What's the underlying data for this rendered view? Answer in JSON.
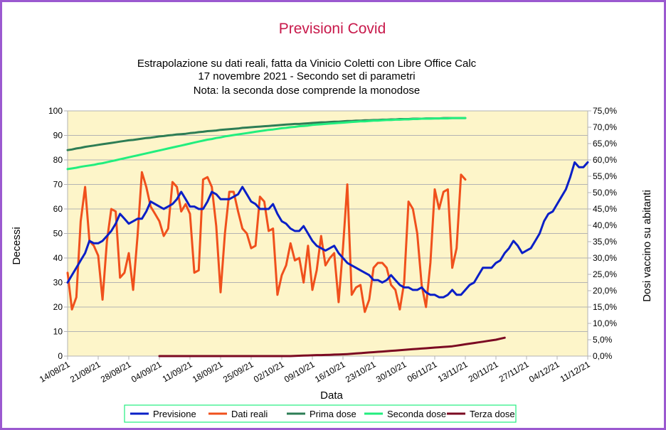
{
  "chart_data": {
    "type": "line",
    "title": "Previsioni Covid",
    "subtitle": [
      "Estrapolazione su dati reali, fatta da Vinicio Coletti con Libre Office Calc",
      "17 novembre 2021 - Secondo set di parametri",
      "Nota: la seconda dose comprende la monodose"
    ],
    "xlabel": "Data",
    "ylabel": "Decessi",
    "y2label": "Dosi vaccino su abitanti",
    "start_date": "14/08/21",
    "x_tick_labels": [
      "14/08/21",
      "21/08/21",
      "28/08/21",
      "04/09/21",
      "11/09/21",
      "18/09/21",
      "25/09/21",
      "02/10/21",
      "09/10/21",
      "16/10/21",
      "23/10/21",
      "30/10/21",
      "06/11/21",
      "13/11/21",
      "20/11/21",
      "27/11/21",
      "04/12/21",
      "11/12/21"
    ],
    "ylim": [
      0,
      100
    ],
    "y_ticks": [
      "0",
      "10",
      "20",
      "30",
      "40",
      "50",
      "60",
      "70",
      "80",
      "90",
      "100"
    ],
    "y2lim": [
      0,
      75
    ],
    "y2_ticks": [
      "0,0%",
      "5,0%",
      "10,0%",
      "15,0%",
      "20,0%",
      "25,0%",
      "30,0%",
      "35,0%",
      "40,0%",
      "45,0%",
      "50,0%",
      "55,0%",
      "60,0%",
      "65,0%",
      "70,0%",
      "75,0%"
    ],
    "grid": true,
    "legend_position": "bottom",
    "colors": {
      "plot_background": "#fdf5c9",
      "grid": "#b3b3b3",
      "frame": "#9b59d0"
    },
    "series": [
      {
        "name": "Previsione",
        "axis": "left",
        "color": "#0a1fc7",
        "start_day": 0,
        "values": [
          30,
          33,
          36,
          39,
          42,
          47,
          46,
          46,
          47,
          49,
          51,
          54,
          58,
          56,
          54,
          55,
          56,
          56,
          59,
          63,
          62,
          61,
          60,
          61,
          62,
          64,
          67,
          64,
          61,
          61,
          60,
          60,
          63,
          67,
          66,
          64,
          64,
          64,
          65,
          66,
          69,
          66,
          63,
          62,
          60,
          60,
          60,
          62,
          58,
          55,
          54,
          52,
          51,
          51,
          53,
          50,
          47,
          45,
          44,
          43,
          44,
          45,
          42,
          40,
          38,
          37,
          36,
          35,
          34,
          33,
          31,
          31,
          30,
          31,
          33,
          31,
          29,
          28,
          28,
          27,
          27,
          28,
          26,
          25,
          25,
          24,
          24,
          25,
          27,
          25,
          25,
          27,
          29,
          30,
          33,
          36,
          36,
          36,
          38,
          39,
          42,
          44,
          47,
          45,
          42,
          43,
          44,
          47,
          50,
          55,
          58,
          59,
          62,
          65,
          68,
          73,
          79,
          77,
          77,
          79
        ]
      },
      {
        "name": "Dati reali",
        "axis": "left",
        "color": "#f0501c",
        "start_day": 0,
        "values": [
          34,
          19,
          24,
          55,
          69,
          47,
          45,
          41,
          23,
          47,
          60,
          59,
          32,
          34,
          42,
          27,
          49,
          75,
          69,
          61,
          58,
          55,
          49,
          52,
          71,
          69,
          59,
          62,
          58,
          34,
          35,
          72,
          73,
          69,
          53,
          26,
          50,
          67,
          67,
          59,
          52,
          50,
          44,
          45,
          65,
          63,
          51,
          52,
          25,
          33,
          37,
          46,
          39,
          40,
          30,
          45,
          27,
          35,
          49,
          37,
          40,
          42,
          22,
          44,
          70,
          25,
          28,
          29,
          18,
          23,
          36,
          38,
          38,
          36,
          29,
          27,
          19,
          30,
          63,
          60,
          50,
          29,
          20,
          38,
          68,
          60,
          67,
          68,
          36,
          44,
          74,
          72
        ]
      },
      {
        "name": "Prima dose",
        "axis": "right",
        "color": "#2d7d55",
        "start_day": 0,
        "values": [
          63.0,
          63.2,
          63.5,
          63.7,
          64.0,
          64.2,
          64.4,
          64.6,
          64.8,
          65.0,
          65.2,
          65.4,
          65.6,
          65.8,
          66.0,
          66.1,
          66.3,
          66.5,
          66.7,
          66.8,
          67.0,
          67.2,
          67.3,
          67.5,
          67.6,
          67.8,
          67.9,
          68.0,
          68.2,
          68.3,
          68.5,
          68.6,
          68.8,
          68.9,
          69.0,
          69.2,
          69.3,
          69.4,
          69.5,
          69.6,
          69.8,
          69.9,
          70.0,
          70.1,
          70.2,
          70.3,
          70.4,
          70.5,
          70.6,
          70.7,
          70.8,
          70.9,
          71.0,
          71.0,
          71.1,
          71.2,
          71.3,
          71.4,
          71.5,
          71.5,
          71.6,
          71.7,
          71.7,
          71.8,
          71.9,
          71.9,
          72.0,
          72.0,
          72.1,
          72.1,
          72.2,
          72.2,
          72.3,
          72.3,
          72.4,
          72.4,
          72.5,
          72.5,
          72.5,
          72.6,
          72.6,
          72.6,
          72.7,
          72.7,
          72.7,
          72.7,
          72.8,
          72.8,
          72.8,
          72.8,
          72.8,
          72.8
        ]
      },
      {
        "name": "Seconda dose",
        "axis": "right",
        "color": "#22ee7e",
        "start_day": 0,
        "values": [
          57.2,
          57.4,
          57.6,
          57.9,
          58.1,
          58.3,
          58.5,
          58.8,
          59.0,
          59.3,
          59.6,
          59.9,
          60.2,
          60.5,
          60.8,
          61.1,
          61.4,
          61.7,
          62.0,
          62.3,
          62.6,
          62.9,
          63.2,
          63.5,
          63.8,
          64.1,
          64.4,
          64.7,
          65.0,
          65.3,
          65.6,
          65.9,
          66.2,
          66.4,
          66.7,
          66.9,
          67.2,
          67.4,
          67.6,
          67.8,
          68.0,
          68.2,
          68.4,
          68.6,
          68.8,
          69.0,
          69.2,
          69.3,
          69.5,
          69.7,
          69.8,
          70.0,
          70.1,
          70.3,
          70.4,
          70.5,
          70.7,
          70.8,
          70.9,
          71.0,
          71.1,
          71.2,
          71.3,
          71.4,
          71.5,
          71.6,
          71.7,
          71.8,
          71.8,
          71.9,
          72.0,
          72.0,
          72.1,
          72.2,
          72.2,
          72.3,
          72.3,
          72.4,
          72.4,
          72.5,
          72.5,
          72.6,
          72.6,
          72.6,
          72.7,
          72.7,
          72.7,
          72.7,
          72.8,
          72.8,
          72.8,
          72.8
        ]
      },
      {
        "name": "Terza dose",
        "axis": "right",
        "color": "#7b0a22",
        "start_day": 21,
        "values": [
          0,
          0,
          0,
          0,
          0,
          0,
          0,
          0,
          0,
          0,
          0,
          0,
          0,
          0,
          0,
          0,
          0,
          0,
          0,
          0,
          0,
          0,
          0,
          0,
          0,
          0,
          0,
          0,
          0,
          0,
          0,
          0.05,
          0.1,
          0.15,
          0.2,
          0.25,
          0.3,
          0.3,
          0.35,
          0.4,
          0.45,
          0.5,
          0.55,
          0.6,
          0.7,
          0.8,
          0.9,
          1.0,
          1.1,
          1.2,
          1.3,
          1.4,
          1.5,
          1.6,
          1.7,
          1.8,
          1.9,
          2.0,
          2.1,
          2.2,
          2.3,
          2.4,
          2.5,
          2.6,
          2.7,
          2.8,
          2.9,
          3.0,
          3.2,
          3.4,
          3.6,
          3.8,
          4.0,
          4.2,
          4.4,
          4.6,
          4.8,
          5.0,
          5.3,
          5.6
        ]
      }
    ]
  }
}
